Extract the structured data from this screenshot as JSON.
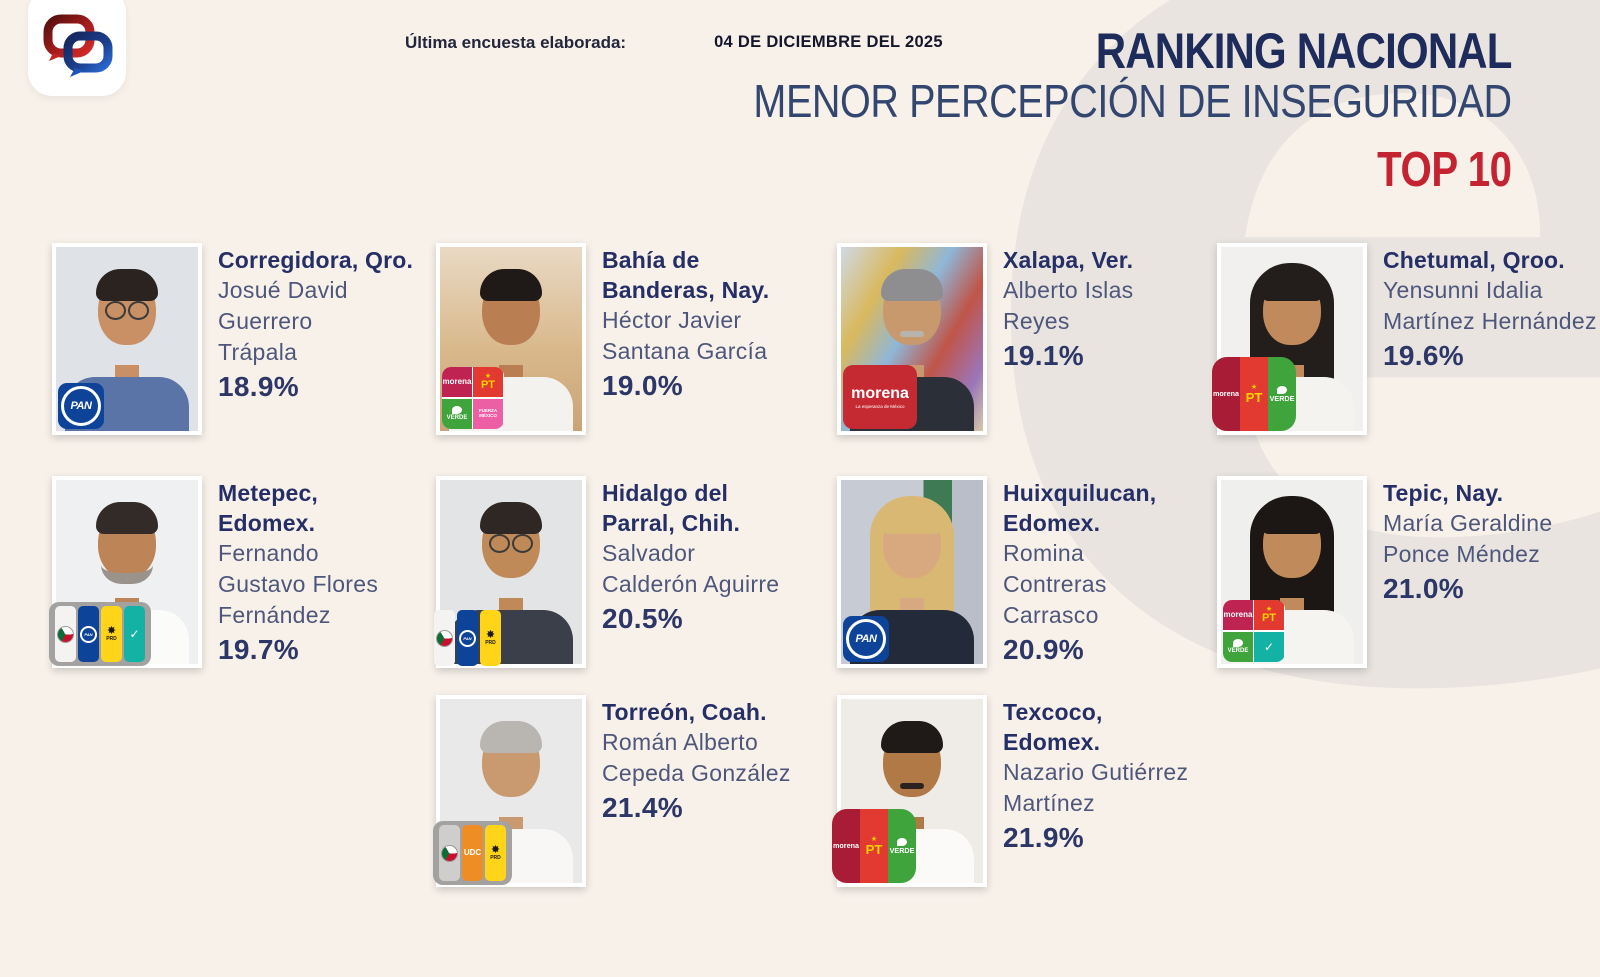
{
  "page": {
    "survey_label": "Última encuesta elaborada:",
    "survey_date": "04 DE DICIEMBRE DEL 2025",
    "ranking_title": "RANKING NACIONAL",
    "ranking_subtitle": "MENOR PERCEPCIÓN DE INSEGURIDAD",
    "top_label": "TOP 10",
    "watermark_letter": "e"
  },
  "colors": {
    "background": "#f8f1ea",
    "watermark": "#e9e4e0",
    "title": "#1e2c5c",
    "subtitle": "#32466f",
    "top": "#c42431",
    "location_text": "#252f66",
    "name_text": "#4e577b",
    "percent_text": "#2c3768"
  },
  "chart_data": {
    "type": "table",
    "title": "RANKING NACIONAL - MENOR PERCEPCIÓN DE INSEGURIDAD - TOP 10",
    "categories": [
      "Corregidora, Qro.",
      "Bahía de Banderas, Nay.",
      "Xalapa, Ver.",
      "Chetumal, Qroo.",
      "Metepec, Edomex.",
      "Hidalgo del Parral, Chih.",
      "Huixquilucan, Edomex.",
      "Tepic, Nay.",
      "Torreón, Coah.",
      "Texcoco, Edomex."
    ],
    "values": [
      18.9,
      19.0,
      19.1,
      19.6,
      19.7,
      20.5,
      20.9,
      21.0,
      21.4,
      21.9
    ]
  },
  "party_cells": {
    "morena": {
      "bg": "#bf2352",
      "label": "morena",
      "fg": "#ffffff",
      "fs": 8,
      "kind": "text"
    },
    "morena_s": {
      "bg": "#a81d35",
      "label": "morena",
      "fg": "#ffffff",
      "fs": 6,
      "kind": "text"
    },
    "pt": {
      "bg": "#e23a30",
      "label": "PT",
      "fg": "#ffd400",
      "fs": 11,
      "kind": "pt"
    },
    "verde": {
      "bg": "#3ea43b",
      "label": "VERDE",
      "fg": "#ffffff",
      "fs": 6,
      "kind": "verde"
    },
    "fm": {
      "bg": "#ed5fa5",
      "label": "FUERZA MÉXICO",
      "fg": "#ffffff",
      "fs": 4.5,
      "kind": "text"
    },
    "na": {
      "bg": "#14b2a5",
      "label": "✓",
      "fg": "#ffffff",
      "fs": 12,
      "kind": "text"
    },
    "pri": {
      "bg": "#f4f3f1",
      "label": "PRI",
      "fg": "#333333",
      "fs": 5,
      "kind": "pri"
    },
    "pri_g": {
      "bg": "#cfcecc",
      "label": "PRI",
      "fg": "#333333",
      "fs": 5,
      "kind": "pri"
    },
    "pan_s": {
      "bg": "#0d4399",
      "label": "PAN",
      "fg": "#ffffff",
      "fs": 4,
      "kind": "pan"
    },
    "prd": {
      "bg": "#ffd419",
      "label": "PRD",
      "fg": "#1a1a1a",
      "fs": 5,
      "kind": "prd"
    },
    "udc": {
      "bg": "#ef8d25",
      "label": "UDC",
      "fg": "#ffffff",
      "fs": 8,
      "kind": "text"
    }
  },
  "entries": [
    {
      "rank": 1,
      "grid": {
        "row": 0,
        "col": 0
      },
      "location_lines": [
        "Corregidora, Qro."
      ],
      "name_lines": [
        "Josué David",
        "Guerrero",
        "Trápala"
      ],
      "percent": "18.9%",
      "badge": {
        "type": "pan"
      },
      "photo": {
        "bg": "#dfe3e8",
        "skin": "#c89064",
        "hair": "#2a2320",
        "shirt": "#5a74a8",
        "hairstyle": "short",
        "glasses": true,
        "facial": "none"
      }
    },
    {
      "rank": 2,
      "grid": {
        "row": 0,
        "col": 1
      },
      "location_lines": [
        "Bahía de",
        "Banderas, Nay."
      ],
      "name_lines": [
        "Héctor Javier",
        "Santana García"
      ],
      "percent": "19.0%",
      "badge": {
        "type": "grid",
        "cells": [
          "morena",
          "pt",
          "verde",
          "fm"
        ]
      },
      "photo": {
        "bg": "linear-gradient(180deg,#e9d9c4 0%,#d9b98c 55%,#caa477 100%)",
        "skin": "#b97f52",
        "hair": "#1f1a17",
        "shirt": "#f4f2ee",
        "hairstyle": "short",
        "glasses": false,
        "facial": "none"
      }
    },
    {
      "rank": 3,
      "grid": {
        "row": 0,
        "col": 2
      },
      "location_lines": [
        "Xalapa, Ver."
      ],
      "name_lines": [
        "Alberto Islas",
        "Reyes"
      ],
      "percent": "19.1%",
      "badge": {
        "type": "morena",
        "label": "morena",
        "sublabel": "La esperanza de México"
      },
      "photo": {
        "bg": "linear-gradient(120deg,#cfd9e6 0%,#d9b95e 25%,#8fb7d8 45%,#c05548 65%,#9b76b8 85%,#d9c9a8 100%)",
        "skin": "#c9996e",
        "hair": "#8e8d8f",
        "shirt": "#2b2f38",
        "hairstyle": "short",
        "glasses": false,
        "facial": "mustache",
        "facial_color": "#b7b3ad"
      }
    },
    {
      "rank": 4,
      "grid": {
        "row": 0,
        "col": 3
      },
      "location_lines": [
        "Chetumal, Qroo."
      ],
      "name_lines": [
        "Yensunni Idalia",
        "Martínez Hernández"
      ],
      "percent": "19.6%",
      "badge": {
        "type": "stripes",
        "cells": [
          "morena_s",
          "pt",
          "verde"
        ],
        "large": true
      },
      "photo": {
        "bg": "#f1f0ee",
        "skin": "#c08a5c",
        "hair": "#231d1c",
        "shirt": "#f5f3ef",
        "hairstyle": "long",
        "glasses": false,
        "facial": "none"
      }
    },
    {
      "rank": 5,
      "grid": {
        "row": 1,
        "col": 0
      },
      "location_lines": [
        "Metepec,",
        "Edomex."
      ],
      "name_lines": [
        "Fernando",
        "Gustavo Flores",
        "Fernández"
      ],
      "percent": "19.7%",
      "badge": {
        "type": "stripes",
        "cells": [
          "pri",
          "pan_s",
          "prd",
          "na"
        ],
        "framed": true
      },
      "photo": {
        "bg": "#eef0f2",
        "skin": "#bc8457",
        "hair": "#332b27",
        "shirt": "#fbfbf9",
        "hairstyle": "short",
        "glasses": false,
        "facial": "beard",
        "facial_color": "#9a938c"
      }
    },
    {
      "rank": 6,
      "grid": {
        "row": 1,
        "col": 1
      },
      "location_lines": [
        "Hidalgo del",
        "Parral, Chih."
      ],
      "name_lines": [
        "Salvador",
        "Calderón Aguirre"
      ],
      "percent": "20.5%",
      "badge": {
        "type": "stripes",
        "cells": [
          "pri",
          "pan_s",
          "prd"
        ]
      },
      "photo": {
        "bg": "#e3e4e6",
        "skin": "#c08a58",
        "hair": "#2e2723",
        "shirt": "#3a3f4a",
        "hairstyle": "short",
        "glasses": true,
        "facial": "none"
      }
    },
    {
      "rank": 7,
      "grid": {
        "row": 1,
        "col": 2
      },
      "location_lines": [
        "Huixquilucan,",
        "Edomex."
      ],
      "name_lines": [
        "Romina",
        "Contreras",
        "Carrasco"
      ],
      "percent": "20.9%",
      "badge": {
        "type": "pan"
      },
      "photo": {
        "bg": "linear-gradient(90deg,#c7ccd4 0%,#c7ccd4 58%,#3e7a54 58%,#3e7a54 78%,#b9bec9 78%,#b9bec9 100%)",
        "skin": "#d8a87e",
        "hair": "#d9b873",
        "shirt": "#232a3a",
        "hairstyle": "long",
        "glasses": false,
        "facial": "none"
      }
    },
    {
      "rank": 8,
      "grid": {
        "row": 1,
        "col": 3
      },
      "location_lines": [
        "Tepic, Nay."
      ],
      "name_lines": [
        "María Geraldine",
        "Ponce Méndez"
      ],
      "percent": "21.0%",
      "badge": {
        "type": "grid",
        "cells": [
          "morena",
          "pt",
          "verde",
          "na"
        ]
      },
      "photo": {
        "bg": "#efefed",
        "skin": "#c08a5a",
        "hair": "#1c1715",
        "shirt": "#f6f4f1",
        "hairstyle": "long",
        "glasses": false,
        "facial": "none"
      }
    },
    {
      "rank": 9,
      "grid": {
        "row": 2,
        "col": 1
      },
      "location_lines": [
        "Torreón, Coah."
      ],
      "name_lines": [
        "Román Alberto",
        "Cepeda González"
      ],
      "percent": "21.4%",
      "badge": {
        "type": "stripes",
        "cells": [
          "pri_g",
          "udc",
          "prd"
        ],
        "framed": true
      },
      "photo": {
        "bg": "#e9e9e9",
        "skin": "#c99a70",
        "hair": "#b9b6b2",
        "shirt": "#f8f7f5",
        "hairstyle": "short",
        "glasses": false,
        "facial": "none"
      }
    },
    {
      "rank": 10,
      "grid": {
        "row": 2,
        "col": 2
      },
      "location_lines": [
        "Texcoco,",
        "Edomex."
      ],
      "name_lines": [
        "Nazario Gutiérrez",
        "Martínez"
      ],
      "percent": "21.9%",
      "badge": {
        "type": "stripes",
        "cells": [
          "morena_s",
          "pt",
          "verde"
        ],
        "large": true
      },
      "photo": {
        "bg": "#efece7",
        "skin": "#b07946",
        "hair": "#1f1a18",
        "shirt": "#fbfaf8",
        "hairstyle": "short",
        "glasses": false,
        "facial": "mustache",
        "facial_color": "#2a2220"
      }
    }
  ]
}
